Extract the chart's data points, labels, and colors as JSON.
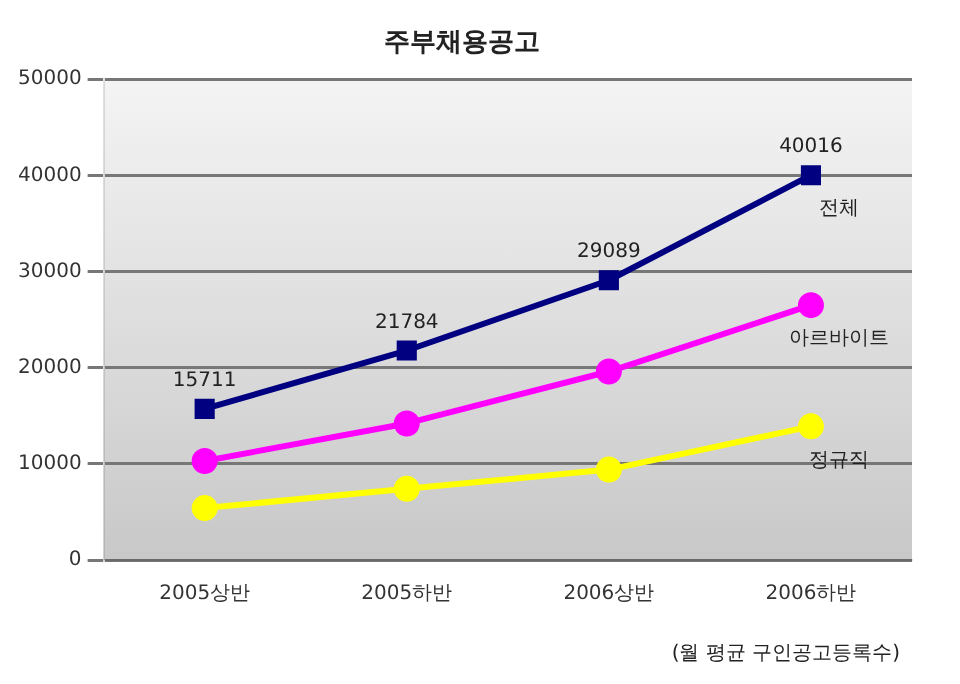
{
  "chart_data": {
    "type": "line",
    "title": "주부채용공고",
    "categories": [
      "2005상반",
      "2005하반",
      "2006상반",
      "2006하반"
    ],
    "series": [
      {
        "name": "전체",
        "color": "#000080",
        "values": [
          15711,
          21784,
          29089,
          40016
        ],
        "value_labels": [
          "15711",
          "21784",
          "29089",
          "40016"
        ],
        "marker": "square"
      },
      {
        "name": "아르바이트",
        "color": "#ff00ff",
        "values": [
          10300,
          14200,
          19600,
          26500
        ],
        "marker": "circle"
      },
      {
        "name": "정규직",
        "color": "#ffff00",
        "values": [
          5400,
          7400,
          9400,
          13900
        ],
        "marker": "circle"
      }
    ],
    "ylim": [
      0,
      50000
    ],
    "yticks": [
      0,
      10000,
      20000,
      30000,
      40000,
      50000
    ],
    "grid": "y",
    "legend": false,
    "annotations": [
      "(월 평균 구인공고등록수)"
    ]
  }
}
